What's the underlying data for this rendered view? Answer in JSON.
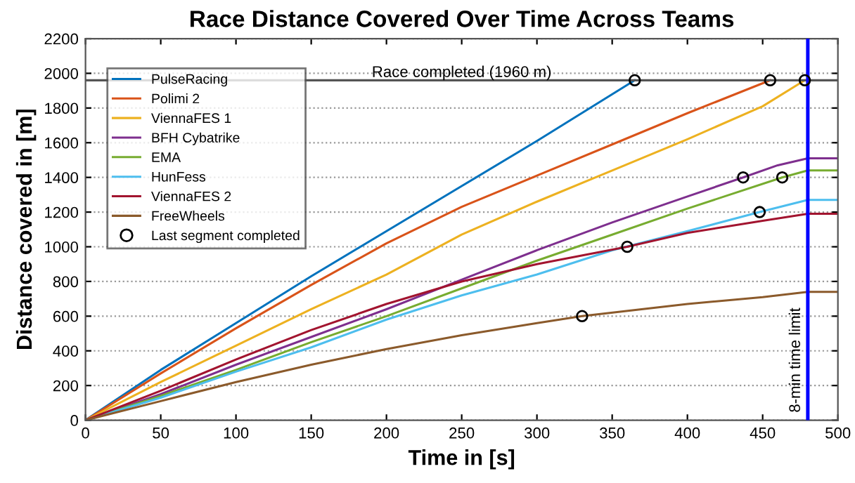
{
  "chart_data": {
    "type": "line",
    "title": "Race Distance Covered Over Time Across Teams",
    "xlabel": "Time in [s]",
    "ylabel": "Distance covered in [m]",
    "xlim": [
      0,
      500
    ],
    "xticks": [
      0,
      50,
      100,
      150,
      200,
      250,
      300,
      350,
      400,
      450,
      500
    ],
    "ylim": [
      0,
      2200
    ],
    "yticks": [
      0,
      200,
      400,
      600,
      800,
      1000,
      1200,
      1400,
      1600,
      1800,
      2000,
      2200
    ],
    "grid": "y",
    "legend": "top left",
    "series": [
      {
        "name": "PulseRacing",
        "color": "#0072bd",
        "x": [
          0,
          50,
          100,
          150,
          200,
          250,
          300,
          365
        ],
        "values": [
          0,
          290,
          560,
          830,
          1090,
          1350,
          1610,
          1960
        ]
      },
      {
        "name": "Polimi 2",
        "color": "#d95319",
        "x": [
          0,
          50,
          100,
          150,
          200,
          250,
          300,
          350,
          400,
          455
        ],
        "values": [
          0,
          270,
          530,
          780,
          1020,
          1230,
          1410,
          1590,
          1770,
          1960
        ]
      },
      {
        "name": "ViennaFES 1",
        "color": "#edb120",
        "x": [
          0,
          50,
          100,
          150,
          200,
          250,
          300,
          350,
          400,
          450,
          478
        ],
        "values": [
          0,
          220,
          430,
          640,
          840,
          1070,
          1260,
          1440,
          1620,
          1810,
          1960
        ]
      },
      {
        "name": "BFH Cybatrike",
        "color": "#7e2f8e",
        "x": [
          0,
          50,
          100,
          150,
          200,
          250,
          300,
          350,
          400,
          437,
          460,
          480,
          500
        ],
        "values": [
          0,
          150,
          320,
          480,
          640,
          810,
          980,
          1140,
          1290,
          1400,
          1470,
          1510,
          1510
        ]
      },
      {
        "name": "EMA",
        "color": "#77ac30",
        "x": [
          0,
          50,
          100,
          150,
          200,
          250,
          300,
          350,
          400,
          463,
          480,
          500
        ],
        "values": [
          0,
          140,
          290,
          450,
          600,
          760,
          920,
          1070,
          1220,
          1400,
          1440,
          1440
        ]
      },
      {
        "name": "HunFess",
        "color": "#4dbeee",
        "x": [
          0,
          50,
          100,
          150,
          200,
          250,
          300,
          350,
          400,
          448,
          480,
          500
        ],
        "values": [
          0,
          130,
          280,
          420,
          580,
          720,
          840,
          980,
          1090,
          1200,
          1270,
          1270
        ]
      },
      {
        "name": "ViennaFES 2",
        "color": "#a2142f",
        "x": [
          0,
          50,
          100,
          150,
          200,
          250,
          300,
          360,
          400,
          450,
          480,
          500
        ],
        "values": [
          0,
          170,
          350,
          520,
          670,
          800,
          900,
          1000,
          1080,
          1150,
          1190,
          1190
        ]
      },
      {
        "name": "FreeWheels",
        "color": "#8b5a2b",
        "x": [
          0,
          50,
          100,
          150,
          200,
          250,
          300,
          330,
          400,
          450,
          480,
          500
        ],
        "values": [
          0,
          110,
          220,
          320,
          410,
          490,
          560,
          600,
          670,
          710,
          740,
          740
        ]
      },
      {
        "name": "Last segment completed",
        "type": "scatter",
        "marker": "circle",
        "color": "#000000",
        "x": [
          365,
          455,
          478,
          437,
          463,
          448,
          360,
          330
        ],
        "values": [
          1960,
          1960,
          1960,
          1400,
          1400,
          1200,
          1000,
          600
        ]
      }
    ],
    "ref_lines": [
      {
        "axis": "y",
        "value": 1960,
        "label": "Race completed (1960 m)",
        "color": "#555555"
      },
      {
        "axis": "x",
        "value": 480,
        "label": "8-min time limit",
        "color": "#0000ff"
      }
    ]
  }
}
